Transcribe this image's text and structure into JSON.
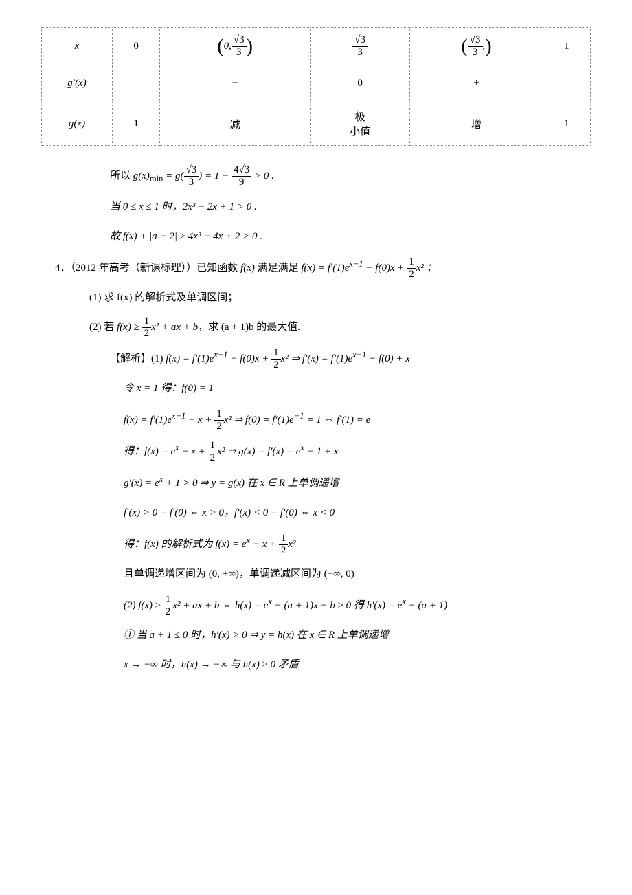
{
  "table": {
    "headers": {
      "x": "x",
      "gprime": "g′(x)",
      "g": "g(x)"
    },
    "row_x": {
      "c0": "0",
      "c1_open": "(",
      "c1_a": "0,",
      "c1_num": "√3",
      "c1_den": "3",
      "c1_close": ")",
      "c2_num": "√3",
      "c2_den": "3",
      "c3_open": "(",
      "c3_num": "√3",
      "c3_den": "3",
      "c3_comma": ",",
      "c3_close": ")",
      "c4": "1"
    },
    "row_gp": {
      "c0": "",
      "c1": "−",
      "c2": "0",
      "c3": "+",
      "c4": ""
    },
    "row_g": {
      "c0": "1",
      "c1": "减",
      "c2": "极\n小值",
      "c3": "增",
      "c4": "1"
    }
  },
  "lines": {
    "l1a": "所以 ",
    "l1b": "g(x)",
    "l1c": "min",
    "l1d": " = g(",
    "l1e_num": "√3",
    "l1e_den": "3",
    "l1f": ") = 1 − ",
    "l1g_num": "4√3",
    "l1g_den": "9",
    "l1h": " > 0 .",
    "l2": "当 0 ≤ x ≤ 1 时，2x³ − 2x + 1 > 0 .",
    "l3": "故 f(x) + |a − 2| ≥ 4x³ − 4x + 2 > 0 .",
    "p4_num": "4．",
    "p4_src": "（2012 年高考（新课标理））已知函数 ",
    "p4_a": "f(x)",
    "p4_b": " 满足满足 ",
    "p4_c": "f(x) = f′(1)e",
    "p4_exp1": "x−1",
    "p4_d": " − f(0)x + ",
    "p4_half_n": "1",
    "p4_half_d": "2",
    "p4_e": "x² ；",
    "q1": "(1) 求 f(x) 的解析式及单调区间；",
    "q2a": "(2) 若 ",
    "q2b": "f(x) ≥ ",
    "q2c_n": "1",
    "q2c_d": "2",
    "q2d": "x² + ax + b",
    "q2e": "，求 (a + 1)b 的最大值.",
    "sol_label": "【解析】",
    "s1a": "(1) ",
    "s1b": "f(x) = f′(1)e",
    "s1c": "x−1",
    "s1d": " − f(0)x + ",
    "s1e_n": "1",
    "s1e_d": "2",
    "s1f": "x²  ⇒  f′(x) = f′(1)e",
    "s1g": "x−1",
    "s1h": " − f(0) + x",
    "s2": "令 x = 1 得：f(0) = 1",
    "s3a": "f(x) = f′(1)e",
    "s3b": "x−1",
    "s3c": " − x + ",
    "s3d_n": "1",
    "s3d_d": "2",
    "s3e": "x²  ⇒  f(0) = f′(1)e",
    "s3f": "−1",
    "s3g": " = 1  ⇔  f′(1) = e",
    "s4a": "得：f(x) = e",
    "s4b": "x",
    "s4c": " − x + ",
    "s4d_n": "1",
    "s4d_d": "2",
    "s4e": "x²  ⇒  g(x) = f′(x) = e",
    "s4f": "x",
    "s4g": " − 1 + x",
    "s5a": "g′(x) = e",
    "s5b": "x",
    "s5c": " + 1 > 0  ⇒  y = g(x) 在 x ∈ R 上单调递增",
    "s6": "f′(x) > 0 = f′(0)  ⇔  x > 0，f′(x) < 0 = f′(0)  ⇔  x < 0",
    "s7a": "得：f(x) 的解析式为 f(x) = e",
    "s7b": "x",
    "s7c": " − x + ",
    "s7d_n": "1",
    "s7d_d": "2",
    "s7e": "x²",
    "s8": "且单调递增区间为 (0, +∞)，单调递减区间为 (−∞, 0)",
    "s9a": "(2) f(x) ≥ ",
    "s9b_n": "1",
    "s9b_d": "2",
    "s9c": "x² + ax + b  ⇔  h(x) = e",
    "s9d": "x",
    "s9e": " − (a + 1)x − b ≥ 0 得 h′(x) = e",
    "s9f": "x",
    "s9g": " − (a + 1)",
    "s10a": "① 当 a + 1 ≤ 0 时，h′(x) > 0  ⇒  y = h(x) 在 x ∈ R 上单调递增",
    "s11": "x → −∞ 时，h(x) → −∞ 与 h(x) ≥ 0 矛盾"
  }
}
